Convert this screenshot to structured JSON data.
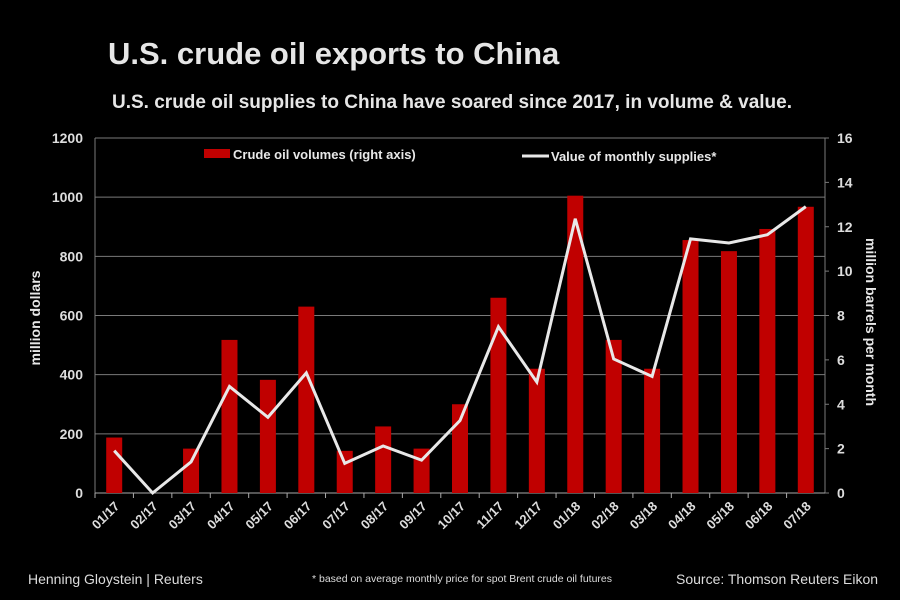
{
  "title": "U.S. crude oil exports to China",
  "subtitle": "U.S. crude oil supplies to China have soared since 2017, in volume & value.",
  "footer": {
    "credit": "Henning Gloystein | Reuters",
    "note": "* based on average monthly price for spot Brent crude oil futures",
    "source": "Source: Thomson Reuters Eikon"
  },
  "colors": {
    "bar": "#c00000",
    "line": "#e8e8e8",
    "grid": "#7a7a7a",
    "background": "#000000"
  },
  "chart_data": {
    "type": "bar+line",
    "categories": [
      "01/17",
      "02/17",
      "03/17",
      "04/17",
      "05/17",
      "06/17",
      "07/17",
      "08/17",
      "09/17",
      "10/17",
      "11/17",
      "12/17",
      "01/18",
      "02/18",
      "03/18",
      "04/18",
      "05/18",
      "06/18",
      "07/18"
    ],
    "series": [
      {
        "name": "Crude oil volumes (right axis)",
        "type": "bar",
        "axis": "right",
        "values": [
          2.5,
          0,
          2.0,
          6.9,
          5.1,
          8.4,
          1.9,
          3.0,
          2.0,
          4.0,
          8.8,
          5.6,
          13.4,
          6.9,
          5.6,
          11.4,
          10.9,
          11.9,
          12.9
        ]
      },
      {
        "name": "Value of monthly supplies*",
        "type": "line",
        "axis": "left",
        "values": [
          143,
          0,
          105,
          360,
          256,
          406,
          100,
          159,
          111,
          245,
          562,
          375,
          927,
          453,
          394,
          859,
          845,
          873,
          968
        ]
      }
    ],
    "ylabel": "million dollars",
    "ylabel_right": "million barrels per month",
    "ylim": [
      0,
      1200
    ],
    "ylim_right": [
      0,
      16
    ],
    "yticks": [
      "0",
      "200",
      "400",
      "600",
      "800",
      "1000",
      "1200"
    ],
    "yticks_right": [
      "0",
      "2",
      "4",
      "6",
      "8",
      "10",
      "12",
      "14",
      "16"
    ],
    "grid": true,
    "legend_position": "top"
  }
}
